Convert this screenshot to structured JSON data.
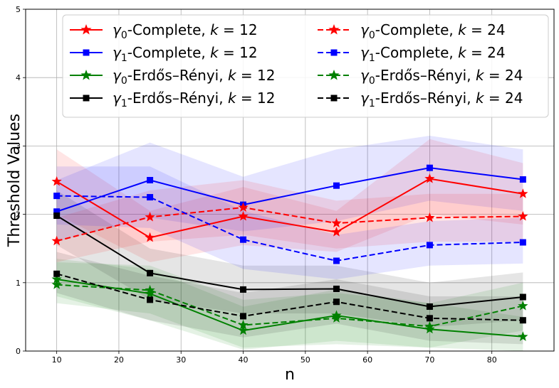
{
  "chart_data": {
    "type": "line",
    "title": "",
    "xlabel": "n",
    "ylabel": "Threshold Values",
    "xlim": [
      5,
      90
    ],
    "ylim": [
      0,
      5
    ],
    "xticks": [
      10,
      20,
      30,
      40,
      50,
      60,
      70,
      80
    ],
    "yticks": [
      0,
      1,
      2,
      3,
      4,
      5
    ],
    "grid": true,
    "legend_position": "top, two columns",
    "x": [
      10,
      25,
      40,
      55,
      70,
      85
    ],
    "series": [
      {
        "name_var": "γ",
        "name_sub": "0",
        "name_rest": "-Complete, ",
        "name_k": "k",
        "name_eq": " = 12",
        "color": "#ff0000",
        "linestyle": "solid",
        "marker": "star",
        "values": [
          2.48,
          1.66,
          1.97,
          1.74,
          2.52,
          2.3
        ],
        "lower": [
          2.0,
          1.3,
          1.55,
          1.45,
          2.0,
          1.85
        ],
        "upper": [
          2.95,
          2.05,
          2.4,
          2.05,
          3.1,
          2.75
        ]
      },
      {
        "name_var": "γ",
        "name_sub": "1",
        "name_rest": "-Complete, ",
        "name_k": "k",
        "name_eq": " = 12",
        "color": "#0000ff",
        "linestyle": "solid",
        "marker": "square",
        "values": [
          2.04,
          2.5,
          2.14,
          2.42,
          2.68,
          2.51
        ],
        "lower": [
          1.6,
          1.95,
          1.75,
          1.9,
          2.2,
          2.05
        ],
        "upper": [
          2.5,
          3.05,
          2.55,
          2.95,
          3.15,
          2.95
        ]
      },
      {
        "name_var": "γ",
        "name_sub": "0",
        "name_rest": "-Erdős–Rényi, ",
        "name_k": "k",
        "name_eq": " = 12",
        "color": "#008000",
        "linestyle": "solid",
        "marker": "star",
        "values": [
          1.05,
          0.84,
          0.3,
          0.52,
          0.32,
          0.21
        ],
        "lower": [
          0.8,
          0.45,
          0.02,
          0.15,
          0.05,
          0.0
        ],
        "upper": [
          1.35,
          1.2,
          0.65,
          0.9,
          0.7,
          0.5
        ]
      },
      {
        "name_var": "γ",
        "name_sub": "1",
        "name_rest": "-Erdős–Rényi, ",
        "name_k": "k",
        "name_eq": " = 12",
        "color": "#000000",
        "linestyle": "solid",
        "marker": "square",
        "values": [
          1.98,
          1.14,
          0.9,
          0.91,
          0.65,
          0.79
        ],
        "lower": [
          1.55,
          0.75,
          0.55,
          0.55,
          0.35,
          0.45
        ],
        "upper": [
          2.35,
          1.5,
          1.25,
          1.25,
          1.0,
          1.15
        ]
      },
      {
        "name_var": "γ",
        "name_sub": "0",
        "name_rest": "-Complete, ",
        "name_k": "k",
        "name_eq": " = 24",
        "color": "#ff0000",
        "linestyle": "dashed",
        "marker": "star",
        "values": [
          1.61,
          1.96,
          2.1,
          1.87,
          1.95,
          1.97
        ],
        "lower": [
          1.3,
          1.6,
          1.7,
          1.5,
          1.6,
          1.6
        ],
        "upper": [
          1.95,
          2.35,
          2.5,
          2.2,
          2.3,
          2.3
        ]
      },
      {
        "name_var": "γ",
        "name_sub": "1",
        "name_rest": "-Complete, ",
        "name_k": "k",
        "name_eq": " = 24",
        "color": "#0000ff",
        "linestyle": "dashed",
        "marker": "square",
        "values": [
          2.27,
          2.25,
          1.63,
          1.32,
          1.55,
          1.59
        ],
        "lower": [
          1.85,
          1.8,
          1.2,
          1.05,
          1.25,
          1.28
        ],
        "upper": [
          2.7,
          2.7,
          2.05,
          1.7,
          1.9,
          1.95
        ]
      },
      {
        "name_var": "γ",
        "name_sub": "0",
        "name_rest": "-Erdős–Rényi, ",
        "name_k": "k",
        "name_eq": " = 24",
        "color": "#008000",
        "linestyle": "dashed",
        "marker": "star",
        "values": [
          0.97,
          0.89,
          0.38,
          0.48,
          0.36,
          0.66
        ],
        "lower": [
          0.7,
          0.55,
          0.05,
          0.1,
          0.05,
          0.3
        ],
        "upper": [
          1.3,
          1.25,
          0.75,
          0.85,
          0.7,
          1.0
        ]
      },
      {
        "name_var": "γ",
        "name_sub": "1",
        "name_rest": "-Erdős–Rényi, ",
        "name_k": "k",
        "name_eq": " = 24",
        "color": "#000000",
        "linestyle": "dashed",
        "marker": "square",
        "values": [
          1.13,
          0.75,
          0.51,
          0.72,
          0.48,
          0.45
        ],
        "lower": [
          0.85,
          0.45,
          0.2,
          0.4,
          0.15,
          0.1
        ],
        "upper": [
          1.45,
          1.1,
          0.85,
          1.05,
          0.8,
          0.8
        ]
      }
    ]
  }
}
